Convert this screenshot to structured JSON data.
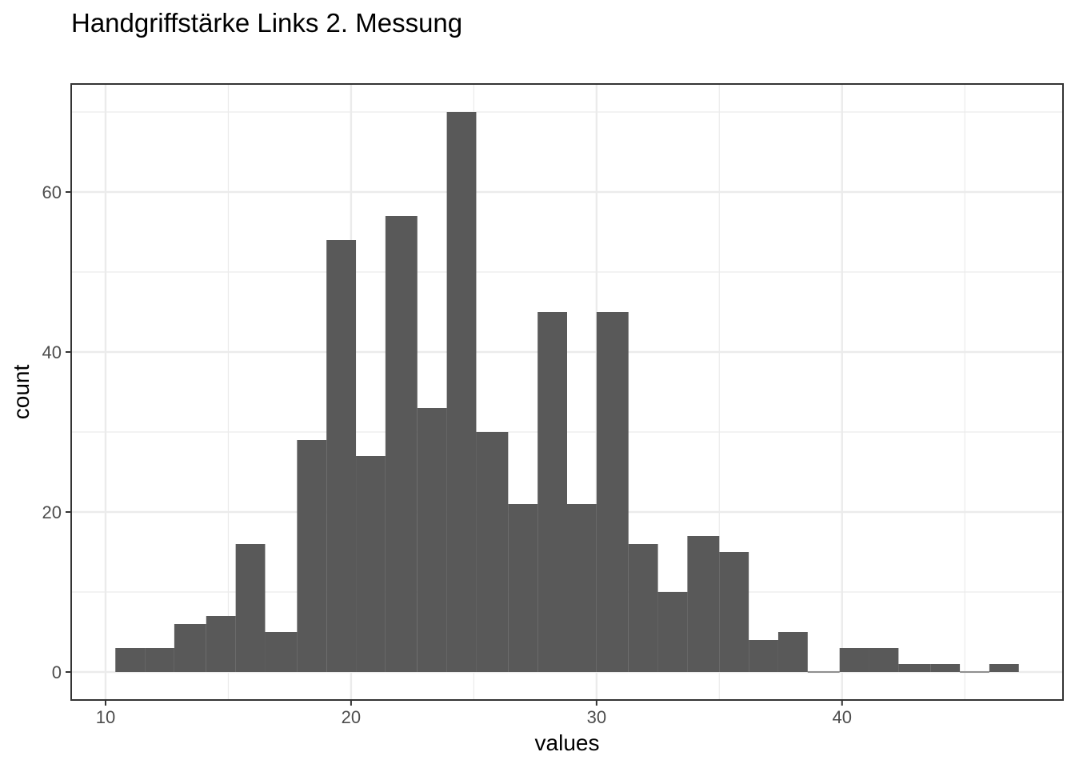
{
  "chart_data": {
    "type": "bar",
    "title": "Handgriffstärke Links 2. Messung",
    "xlabel": "values",
    "ylabel": "count",
    "bin_width": 1.225,
    "bins": [
      {
        "start": 10.4,
        "end": 11.6,
        "count": 3
      },
      {
        "start": 11.6,
        "end": 12.8,
        "count": 3
      },
      {
        "start": 12.8,
        "end": 14.1,
        "count": 6
      },
      {
        "start": 14.1,
        "end": 15.3,
        "count": 7
      },
      {
        "start": 15.3,
        "end": 16.5,
        "count": 16
      },
      {
        "start": 16.5,
        "end": 17.8,
        "count": 5
      },
      {
        "start": 17.8,
        "end": 19.0,
        "count": 29
      },
      {
        "start": 19.0,
        "end": 20.2,
        "count": 54
      },
      {
        "start": 20.2,
        "end": 21.4,
        "count": 27
      },
      {
        "start": 21.4,
        "end": 22.7,
        "count": 57
      },
      {
        "start": 22.7,
        "end": 23.9,
        "count": 33
      },
      {
        "start": 23.9,
        "end": 25.1,
        "count": 70
      },
      {
        "start": 25.1,
        "end": 26.4,
        "count": 30
      },
      {
        "start": 26.4,
        "end": 27.6,
        "count": 21
      },
      {
        "start": 27.6,
        "end": 28.8,
        "count": 45
      },
      {
        "start": 28.8,
        "end": 30.0,
        "count": 21
      },
      {
        "start": 30.0,
        "end": 31.3,
        "count": 45
      },
      {
        "start": 31.3,
        "end": 32.5,
        "count": 16
      },
      {
        "start": 32.5,
        "end": 33.7,
        "count": 10
      },
      {
        "start": 33.7,
        "end": 35.0,
        "count": 17
      },
      {
        "start": 35.0,
        "end": 36.2,
        "count": 15
      },
      {
        "start": 36.2,
        "end": 37.4,
        "count": 4
      },
      {
        "start": 37.4,
        "end": 38.6,
        "count": 5
      },
      {
        "start": 38.6,
        "end": 39.9,
        "count": 0
      },
      {
        "start": 39.9,
        "end": 41.1,
        "count": 3
      },
      {
        "start": 41.1,
        "end": 42.3,
        "count": 3
      },
      {
        "start": 42.3,
        "end": 43.6,
        "count": 1
      },
      {
        "start": 43.6,
        "end": 44.8,
        "count": 1
      },
      {
        "start": 44.8,
        "end": 46.0,
        "count": 0
      },
      {
        "start": 46.0,
        "end": 47.2,
        "count": 1
      }
    ],
    "xlim": [
      8.6,
      49.0
    ],
    "ylim": [
      -3.5,
      73.5
    ],
    "x_ticks": [
      10,
      20,
      30,
      40
    ],
    "x_tick_labels": [
      "10",
      "20",
      "30",
      "40"
    ],
    "x_minor_ticks": [
      15,
      25,
      35,
      45
    ],
    "y_ticks": [
      0,
      20,
      40,
      60
    ],
    "y_tick_labels": [
      "0",
      "20",
      "40",
      "60"
    ],
    "y_minor_ticks": [
      10,
      30,
      50,
      70
    ],
    "grid": true,
    "legend": "none",
    "colors": {
      "bar_fill": "#595959",
      "panel_border": "#333333",
      "grid_major": "#ebebeb",
      "grid_minor": "#ebebeb",
      "tick_label": "#4d4d4d",
      "background": "#ffffff"
    }
  }
}
